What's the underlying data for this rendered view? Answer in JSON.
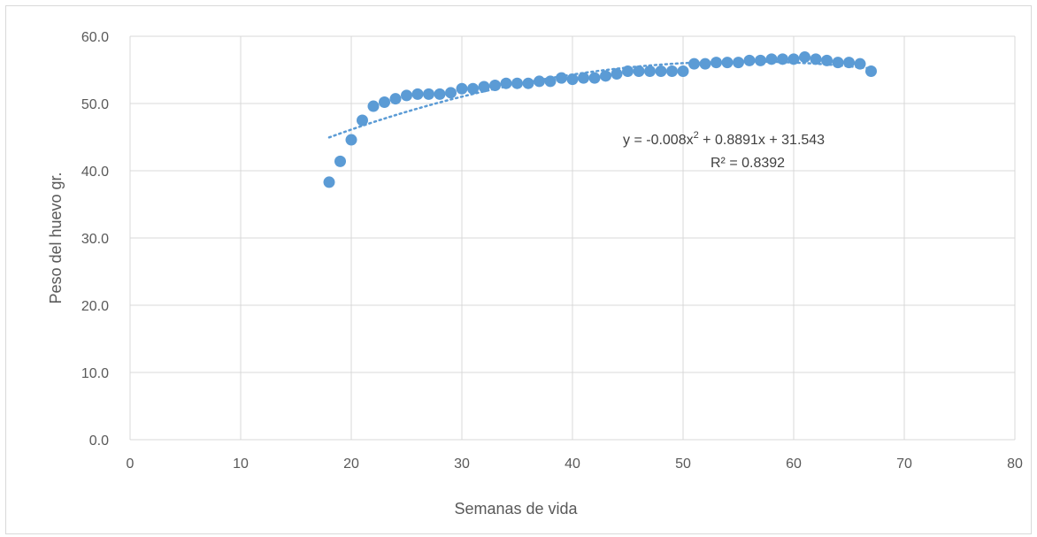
{
  "chart_data": {
    "type": "scatter",
    "title": "",
    "xlabel": "Semanas de vida",
    "ylabel": "Peso del huevo gr.",
    "xlim": [
      0,
      80
    ],
    "ylim": [
      0,
      60
    ],
    "x_ticks": [
      0,
      10,
      20,
      30,
      40,
      50,
      60,
      70,
      80
    ],
    "y_ticks": [
      0,
      10,
      20,
      30,
      40,
      50,
      60
    ],
    "x_tick_labels": [
      "0",
      "10",
      "20",
      "30",
      "40",
      "50",
      "60",
      "70",
      "80"
    ],
    "y_tick_labels": [
      "0.0",
      "10.0",
      "20.0",
      "30.0",
      "40.0",
      "50.0",
      "60.0"
    ],
    "grid": true,
    "legend": "none",
    "series": [
      {
        "color": "#5b9bd5",
        "points": [
          {
            "x": 18,
            "y": 38.3
          },
          {
            "x": 19,
            "y": 41.4
          },
          {
            "x": 20,
            "y": 44.6
          },
          {
            "x": 21,
            "y": 47.5
          },
          {
            "x": 22,
            "y": 49.6
          },
          {
            "x": 23,
            "y": 50.2
          },
          {
            "x": 24,
            "y": 50.7
          },
          {
            "x": 25,
            "y": 51.2
          },
          {
            "x": 26,
            "y": 51.4
          },
          {
            "x": 27,
            "y": 51.4
          },
          {
            "x": 28,
            "y": 51.4
          },
          {
            "x": 29,
            "y": 51.6
          },
          {
            "x": 30,
            "y": 52.2
          },
          {
            "x": 31,
            "y": 52.2
          },
          {
            "x": 32,
            "y": 52.5
          },
          {
            "x": 33,
            "y": 52.7
          },
          {
            "x": 34,
            "y": 53.0
          },
          {
            "x": 35,
            "y": 53.0
          },
          {
            "x": 36,
            "y": 53.0
          },
          {
            "x": 37,
            "y": 53.3
          },
          {
            "x": 38,
            "y": 53.3
          },
          {
            "x": 39,
            "y": 53.8
          },
          {
            "x": 40,
            "y": 53.6
          },
          {
            "x": 41,
            "y": 53.8
          },
          {
            "x": 42,
            "y": 53.8
          },
          {
            "x": 43,
            "y": 54.1
          },
          {
            "x": 44,
            "y": 54.4
          },
          {
            "x": 45,
            "y": 54.8
          },
          {
            "x": 46,
            "y": 54.8
          },
          {
            "x": 47,
            "y": 54.8
          },
          {
            "x": 48,
            "y": 54.8
          },
          {
            "x": 49,
            "y": 54.8
          },
          {
            "x": 50,
            "y": 54.8
          },
          {
            "x": 51,
            "y": 55.9
          },
          {
            "x": 52,
            "y": 55.9
          },
          {
            "x": 53,
            "y": 56.1
          },
          {
            "x": 54,
            "y": 56.1
          },
          {
            "x": 55,
            "y": 56.1
          },
          {
            "x": 56,
            "y": 56.4
          },
          {
            "x": 57,
            "y": 56.4
          },
          {
            "x": 58,
            "y": 56.6
          },
          {
            "x": 59,
            "y": 56.6
          },
          {
            "x": 60,
            "y": 56.6
          },
          {
            "x": 61,
            "y": 56.9
          },
          {
            "x": 62,
            "y": 56.6
          },
          {
            "x": 63,
            "y": 56.4
          },
          {
            "x": 64,
            "y": 56.1
          },
          {
            "x": 65,
            "y": 56.1
          },
          {
            "x": 66,
            "y": 55.9
          },
          {
            "x": 67,
            "y": 54.8
          }
        ]
      }
    ],
    "trendline": {
      "type": "polynomial",
      "order": 2,
      "coefficients": [
        -0.008,
        0.8891,
        31.543
      ],
      "x_range": [
        18,
        67
      ],
      "color": "#5b9bd5",
      "style": "dotted",
      "equation_parts": {
        "lead": "y = -0.008x",
        "sup": "2",
        "rest": " + 0.8891x + 31.543"
      },
      "r2_label": "R² = 0.8392"
    }
  }
}
